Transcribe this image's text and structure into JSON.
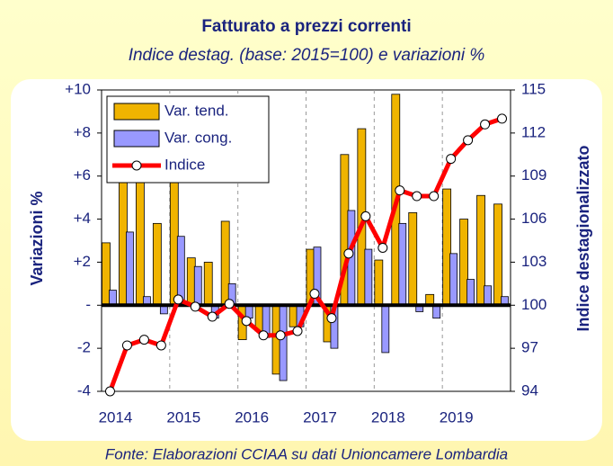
{
  "chart_data": {
    "type": "bar",
    "title": "Fatturato a prezzi correnti",
    "subtitle": "Indice destag. (base: 2015=100) e variazioni %",
    "ylabel": "Variazioni %",
    "y2label": "Indice destagionalizzato",
    "source": "Fonte: Elaborazioni CCIAA su dati Unioncamere Lombardia",
    "categories": [
      "2014",
      null,
      null,
      null,
      "2015",
      null,
      null,
      null,
      "2016",
      null,
      null,
      null,
      "2017",
      null,
      null,
      null,
      "2018",
      null,
      null,
      null,
      "2019",
      null,
      null,
      null
    ],
    "series": [
      {
        "name": "Var. tend.",
        "type": "bar",
        "color": "#f0b400",
        "values": [
          2.9,
          6.5,
          6.8,
          3.8,
          6.6,
          2.2,
          2.0,
          3.9,
          -1.6,
          -1.2,
          -3.2,
          -1.0,
          2.6,
          -1.7,
          7.0,
          8.2,
          2.1,
          9.8,
          4.3,
          0.5,
          5.4,
          4.0,
          5.1,
          4.7
        ]
      },
      {
        "name": "Var. cong.",
        "type": "bar",
        "color": "#9999ff",
        "values": [
          0.7,
          3.4,
          0.4,
          -0.4,
          3.2,
          1.8,
          -0.6,
          1.0,
          -0.6,
          -1.5,
          -3.5,
          -1.0,
          2.7,
          -2.0,
          4.4,
          2.6,
          -2.2,
          3.8,
          -0.3,
          -0.6,
          2.4,
          1.2,
          0.9,
          0.4
        ]
      },
      {
        "name": "Indice",
        "type": "line",
        "axis": "y2",
        "color": "#ff0000",
        "values": [
          94.0,
          97.2,
          97.6,
          97.2,
          100.4,
          99.9,
          99.2,
          100.1,
          98.9,
          97.9,
          97.9,
          98.2,
          100.8,
          99.1,
          103.6,
          106.2,
          104.0,
          108.0,
          107.6,
          107.6,
          110.2,
          111.5,
          112.6,
          113.0
        ]
      }
    ],
    "ylim": [
      -4,
      10
    ],
    "yticks": [
      {
        "value": 10,
        "label": "+10"
      },
      {
        "value": 8,
        "label": "+8"
      },
      {
        "value": 6,
        "label": "+6"
      },
      {
        "value": 4,
        "label": "+4"
      },
      {
        "value": 2,
        "label": "+2"
      },
      {
        "value": 0,
        "label": "-"
      },
      -2,
      -4
    ],
    "y2lim": [
      94,
      115
    ],
    "y2ticks": [
      94,
      97,
      100,
      103,
      106,
      109,
      112,
      115
    ],
    "legend": "top-left"
  }
}
